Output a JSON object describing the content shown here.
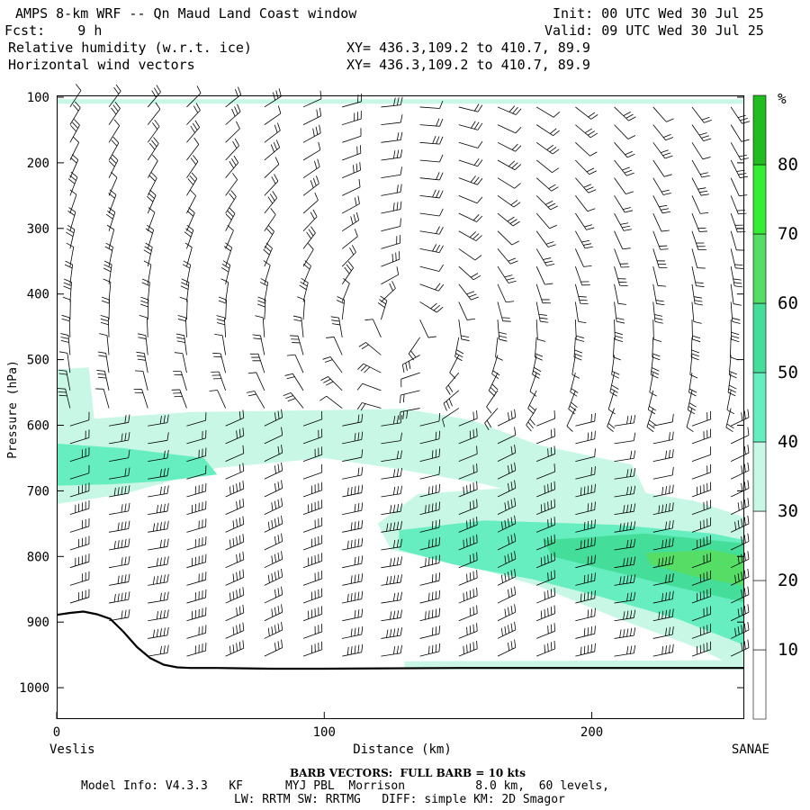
{
  "header": {
    "title": "AMPS 8-km WRF -- Qn Maud Land Coast window",
    "init": "Init: 00 UTC Wed 30 Jul 25",
    "fcst": "Fcst:    9 h",
    "valid": "Valid: 09 UTC Wed 30 Jul 25",
    "field1": "Relative humidity (w.r.t. ice)",
    "xy1": "XY= 436.3,109.2 to 410.7, 89.9",
    "field2": "Horizontal wind vectors",
    "xy2": "XY= 436.3,109.2 to 410.7, 89.9"
  },
  "footer": {
    "barb_note": "BARB VECTORS:  FULL BARB = 10 kts",
    "model_line1": "Model Info: V4.3.3   KF      MYJ PBL  Morrison          8.0 km,  60 levels,",
    "model_line2": "LW: RRTM SW: RRTMG   DIFF: simple KM: 2D Smagor"
  },
  "chart_data": {
    "type": "heatmap",
    "title": "Relative humidity (w.r.t. ice)",
    "xlabel": "Distance (km)",
    "ylabel": "Pressure (hPa)",
    "xlim": [
      0,
      257
    ],
    "ylim": [
      1050,
      100
    ],
    "xticks": [
      0,
      100,
      200
    ],
    "yticks": [
      100,
      200,
      300,
      400,
      500,
      600,
      700,
      800,
      900,
      1000
    ],
    "x_end_labels": {
      "left": "Veslis",
      "right": "SANAE"
    },
    "colorbar": {
      "unit": "%",
      "levels": [
        0,
        10,
        20,
        30,
        40,
        50,
        60,
        70,
        80,
        90
      ],
      "tick_labels": [
        "10",
        "20",
        "30",
        "40",
        "50",
        "60",
        "70",
        "80"
      ],
      "colors": [
        "#ffffff",
        "#ffffff",
        "#ffffff",
        "#c8f7e6",
        "#66eec0",
        "#44dd99",
        "#55dd66",
        "#33ee33",
        "#22bb22"
      ]
    },
    "terrain": {
      "x_km": [
        0,
        5,
        10,
        15,
        20,
        25,
        30,
        35,
        40,
        45,
        50,
        60,
        80,
        100,
        150,
        200,
        257
      ],
      "p_hpa": [
        889,
        886,
        884,
        888,
        895,
        915,
        938,
        955,
        965,
        969,
        970,
        970,
        971,
        971,
        970,
        970,
        970
      ]
    },
    "rh_regions": [
      {
        "level": "30-40",
        "points": [
          [
            0,
            515
          ],
          [
            12,
            512
          ],
          [
            14,
            590
          ],
          [
            50,
            580
          ],
          [
            130,
            575
          ],
          [
            155,
            592
          ],
          [
            180,
            630
          ],
          [
            215,
            660
          ],
          [
            222,
            718
          ],
          [
            200,
            730
          ],
          [
            160,
            690
          ],
          [
            125,
            665
          ],
          [
            100,
            650
          ],
          [
            60,
            665
          ],
          [
            25,
            705
          ],
          [
            0,
            720
          ]
        ]
      },
      {
        "level": "40-50",
        "points": [
          [
            0,
            628
          ],
          [
            25,
            635
          ],
          [
            55,
            650
          ],
          [
            60,
            675
          ],
          [
            40,
            685
          ],
          [
            20,
            690
          ],
          [
            0,
            692
          ]
        ]
      },
      {
        "level": "30-40",
        "points": [
          [
            135,
            705
          ],
          [
            170,
            695
          ],
          [
            215,
            700
          ],
          [
            238,
            715
          ],
          [
            257,
            740
          ],
          [
            257,
            975
          ],
          [
            240,
            940
          ],
          [
            210,
            895
          ],
          [
            180,
            845
          ],
          [
            150,
            810
          ],
          [
            125,
            790
          ],
          [
            120,
            750
          ]
        ]
      },
      {
        "level": "40-50",
        "points": [
          [
            128,
            760
          ],
          [
            160,
            745
          ],
          [
            210,
            752
          ],
          [
            245,
            765
          ],
          [
            257,
            775
          ],
          [
            257,
            935
          ],
          [
            232,
            895
          ],
          [
            202,
            860
          ],
          [
            178,
            835
          ],
          [
            148,
            812
          ],
          [
            128,
            790
          ]
        ]
      },
      {
        "level": "50-60",
        "points": [
          [
            182,
            775
          ],
          [
            220,
            765
          ],
          [
            257,
            780
          ],
          [
            257,
            870
          ],
          [
            230,
            845
          ],
          [
            200,
            815
          ],
          [
            185,
            800
          ]
        ]
      },
      {
        "level": "60-70",
        "points": [
          [
            220,
            795
          ],
          [
            245,
            790
          ],
          [
            257,
            800
          ],
          [
            257,
            845
          ],
          [
            238,
            830
          ],
          [
            222,
            812
          ]
        ]
      },
      {
        "level": "30-40",
        "points": [
          [
            0,
            110
          ],
          [
            257,
            110
          ],
          [
            257,
            103
          ],
          [
            0,
            103
          ]
        ]
      },
      {
        "level": "30-40",
        "points": [
          [
            130,
            960
          ],
          [
            257,
            958
          ],
          [
            257,
            972
          ],
          [
            130,
            972
          ]
        ]
      }
    ]
  }
}
